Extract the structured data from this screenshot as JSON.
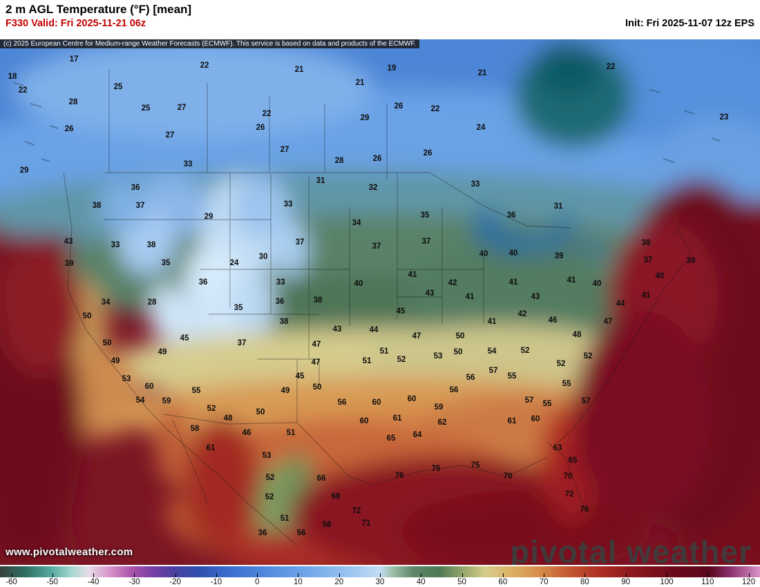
{
  "header": {
    "title": "2 m AGL Temperature (°F) [mean]",
    "valid": "F330 Valid: Fri 2025-11-21 06z",
    "init": "Init: Fri 2025-11-07 12z EPS"
  },
  "copyright": "(c) 2025 European Centre for Medium-range Weather Forecasts (ECMWF). This service is based on data and products of the ECMWF.",
  "watermarks": {
    "url": "www.pivotalweather.com",
    "brand": "pivotal weather"
  },
  "colorbar": {
    "unit": "°F",
    "range": [
      -60,
      120
    ],
    "labels": [
      "-60",
      "-50",
      "-40",
      "-30",
      "-20",
      "-10",
      "0",
      "10",
      "20",
      "30",
      "40",
      "50",
      "60",
      "70",
      "80",
      "90",
      "100",
      "110",
      "120"
    ],
    "gradient": [
      {
        "t": -60,
        "c": "#37423c"
      },
      {
        "t": -54,
        "c": "#2e6f63"
      },
      {
        "t": -48,
        "c": "#55a89e"
      },
      {
        "t": -43,
        "c": "#a6d8d2"
      },
      {
        "t": -39,
        "c": "#e6dbe8"
      },
      {
        "t": -34,
        "c": "#d793cb"
      },
      {
        "t": -29,
        "c": "#ad54ab"
      },
      {
        "t": -24,
        "c": "#7a3fa5"
      },
      {
        "t": -19,
        "c": "#4b3f9e"
      },
      {
        "t": -13,
        "c": "#2f4fae"
      },
      {
        "t": -6,
        "c": "#3a6cce"
      },
      {
        "t": 2,
        "c": "#4f86dc"
      },
      {
        "t": 12,
        "c": "#6fa4e8"
      },
      {
        "t": 22,
        "c": "#96c2f0"
      },
      {
        "t": 30,
        "c": "#c2dcf4"
      },
      {
        "t": 33,
        "c": "#9dbfa8"
      },
      {
        "t": 38,
        "c": "#5d8767"
      },
      {
        "t": 44,
        "c": "#4f7a55"
      },
      {
        "t": 50,
        "c": "#9aa96e"
      },
      {
        "t": 55,
        "c": "#d6cc8b"
      },
      {
        "t": 61,
        "c": "#ddb166"
      },
      {
        "t": 68,
        "c": "#d68c4a"
      },
      {
        "t": 74,
        "c": "#c65c33"
      },
      {
        "t": 82,
        "c": "#ad2f24"
      },
      {
        "t": 90,
        "c": "#8c161e"
      },
      {
        "t": 100,
        "c": "#6b0a1a"
      },
      {
        "t": 108,
        "c": "#59061d"
      },
      {
        "t": 113,
        "c": "#8c2f6e"
      },
      {
        "t": 120,
        "c": "#d993c7"
      }
    ]
  },
  "stations": [
    [
      107,
      86,
      17
    ],
    [
      296,
      95,
      22
    ],
    [
      433,
      101,
      21
    ],
    [
      567,
      99,
      19
    ],
    [
      698,
      106,
      21
    ],
    [
      884,
      97,
      22
    ],
    [
      18,
      111,
      18
    ],
    [
      171,
      126,
      25
    ],
    [
      521,
      120,
      21
    ],
    [
      33,
      131,
      22
    ],
    [
      106,
      148,
      28
    ],
    [
      211,
      157,
      25
    ],
    [
      263,
      156,
      27
    ],
    [
      386,
      165,
      22
    ],
    [
      577,
      154,
      26
    ],
    [
      630,
      158,
      22
    ],
    [
      528,
      171,
      29
    ],
    [
      1048,
      170,
      23
    ],
    [
      100,
      187,
      26
    ],
    [
      377,
      185,
      26
    ],
    [
      696,
      185,
      24
    ],
    [
      246,
      196,
      27
    ],
    [
      412,
      217,
      27
    ],
    [
      619,
      222,
      26
    ],
    [
      491,
      233,
      28
    ],
    [
      546,
      230,
      26
    ],
    [
      272,
      238,
      33
    ],
    [
      35,
      247,
      29
    ],
    [
      464,
      262,
      31
    ],
    [
      196,
      272,
      36
    ],
    [
      540,
      272,
      32
    ],
    [
      688,
      267,
      33
    ],
    [
      140,
      298,
      38
    ],
    [
      203,
      298,
      37
    ],
    [
      302,
      314,
      29
    ],
    [
      417,
      296,
      33
    ],
    [
      615,
      312,
      35
    ],
    [
      740,
      312,
      36
    ],
    [
      808,
      299,
      31
    ],
    [
      516,
      323,
      34
    ],
    [
      99,
      350,
      43
    ],
    [
      167,
      355,
      33
    ],
    [
      219,
      355,
      38
    ],
    [
      434,
      351,
      37
    ],
    [
      545,
      357,
      37
    ],
    [
      617,
      350,
      37
    ],
    [
      935,
      352,
      38
    ],
    [
      381,
      372,
      30
    ],
    [
      100,
      382,
      39
    ],
    [
      240,
      381,
      35
    ],
    [
      339,
      381,
      24
    ],
    [
      700,
      368,
      40
    ],
    [
      743,
      367,
      40
    ],
    [
      809,
      371,
      39
    ],
    [
      938,
      377,
      37
    ],
    [
      1000,
      378,
      39
    ],
    [
      294,
      409,
      36
    ],
    [
      406,
      409,
      33
    ],
    [
      519,
      411,
      40
    ],
    [
      597,
      398,
      41
    ],
    [
      655,
      410,
      42
    ],
    [
      743,
      409,
      41
    ],
    [
      827,
      406,
      41
    ],
    [
      864,
      411,
      40
    ],
    [
      955,
      400,
      40
    ],
    [
      153,
      438,
      34
    ],
    [
      220,
      438,
      28
    ],
    [
      345,
      446,
      35
    ],
    [
      405,
      437,
      36
    ],
    [
      460,
      435,
      38
    ],
    [
      622,
      425,
      43
    ],
    [
      680,
      430,
      41
    ],
    [
      775,
      430,
      43
    ],
    [
      898,
      440,
      44
    ],
    [
      935,
      428,
      41
    ],
    [
      126,
      458,
      50
    ],
    [
      411,
      466,
      38
    ],
    [
      580,
      451,
      45
    ],
    [
      712,
      466,
      41
    ],
    [
      756,
      455,
      42
    ],
    [
      800,
      464,
      46
    ],
    [
      880,
      466,
      47
    ],
    [
      488,
      477,
      43
    ],
    [
      541,
      478,
      44
    ],
    [
      603,
      487,
      47
    ],
    [
      666,
      487,
      50
    ],
    [
      835,
      485,
      48
    ],
    [
      155,
      497,
      50
    ],
    [
      267,
      490,
      45
    ],
    [
      350,
      497,
      37
    ],
    [
      458,
      499,
      47
    ],
    [
      663,
      510,
      50
    ],
    [
      712,
      509,
      54
    ],
    [
      851,
      516,
      52
    ],
    [
      167,
      523,
      49
    ],
    [
      235,
      510,
      49
    ],
    [
      531,
      523,
      51
    ],
    [
      556,
      509,
      51
    ],
    [
      581,
      521,
      52
    ],
    [
      634,
      516,
      53
    ],
    [
      760,
      508,
      52
    ],
    [
      812,
      527,
      52
    ],
    [
      434,
      545,
      45
    ],
    [
      457,
      525,
      47
    ],
    [
      183,
      549,
      53
    ],
    [
      216,
      560,
      60
    ],
    [
      241,
      581,
      59
    ],
    [
      203,
      580,
      54
    ],
    [
      284,
      566,
      55
    ],
    [
      681,
      547,
      56
    ],
    [
      714,
      537,
      57
    ],
    [
      741,
      545,
      55
    ],
    [
      820,
      556,
      55
    ],
    [
      413,
      566,
      49
    ],
    [
      459,
      561,
      50
    ],
    [
      495,
      583,
      56
    ],
    [
      545,
      583,
      60
    ],
    [
      596,
      578,
      60
    ],
    [
      635,
      590,
      59
    ],
    [
      657,
      565,
      56
    ],
    [
      766,
      580,
      57
    ],
    [
      792,
      585,
      55
    ],
    [
      848,
      581,
      57
    ],
    [
      306,
      592,
      52
    ],
    [
      330,
      606,
      48
    ],
    [
      377,
      597,
      50
    ],
    [
      527,
      610,
      60
    ],
    [
      575,
      606,
      61
    ],
    [
      741,
      610,
      61
    ],
    [
      775,
      607,
      60
    ],
    [
      282,
      621,
      58
    ],
    [
      305,
      649,
      61
    ],
    [
      357,
      627,
      46
    ],
    [
      421,
      627,
      51
    ],
    [
      566,
      635,
      65
    ],
    [
      604,
      630,
      64
    ],
    [
      640,
      612,
      62
    ],
    [
      386,
      660,
      53
    ],
    [
      465,
      693,
      66
    ],
    [
      391,
      692,
      52
    ],
    [
      486,
      719,
      68
    ],
    [
      516,
      740,
      72
    ],
    [
      390,
      720,
      52
    ],
    [
      807,
      649,
      63
    ],
    [
      829,
      667,
      65
    ],
    [
      822,
      690,
      70
    ],
    [
      824,
      716,
      72
    ],
    [
      846,
      738,
      76
    ],
    [
      578,
      689,
      76
    ],
    [
      631,
      679,
      75
    ],
    [
      688,
      674,
      75
    ],
    [
      735,
      690,
      70
    ],
    [
      412,
      751,
      51
    ],
    [
      436,
      772,
      56
    ],
    [
      473,
      760,
      58
    ],
    [
      380,
      772,
      36
    ],
    [
      530,
      758,
      71
    ]
  ]
}
